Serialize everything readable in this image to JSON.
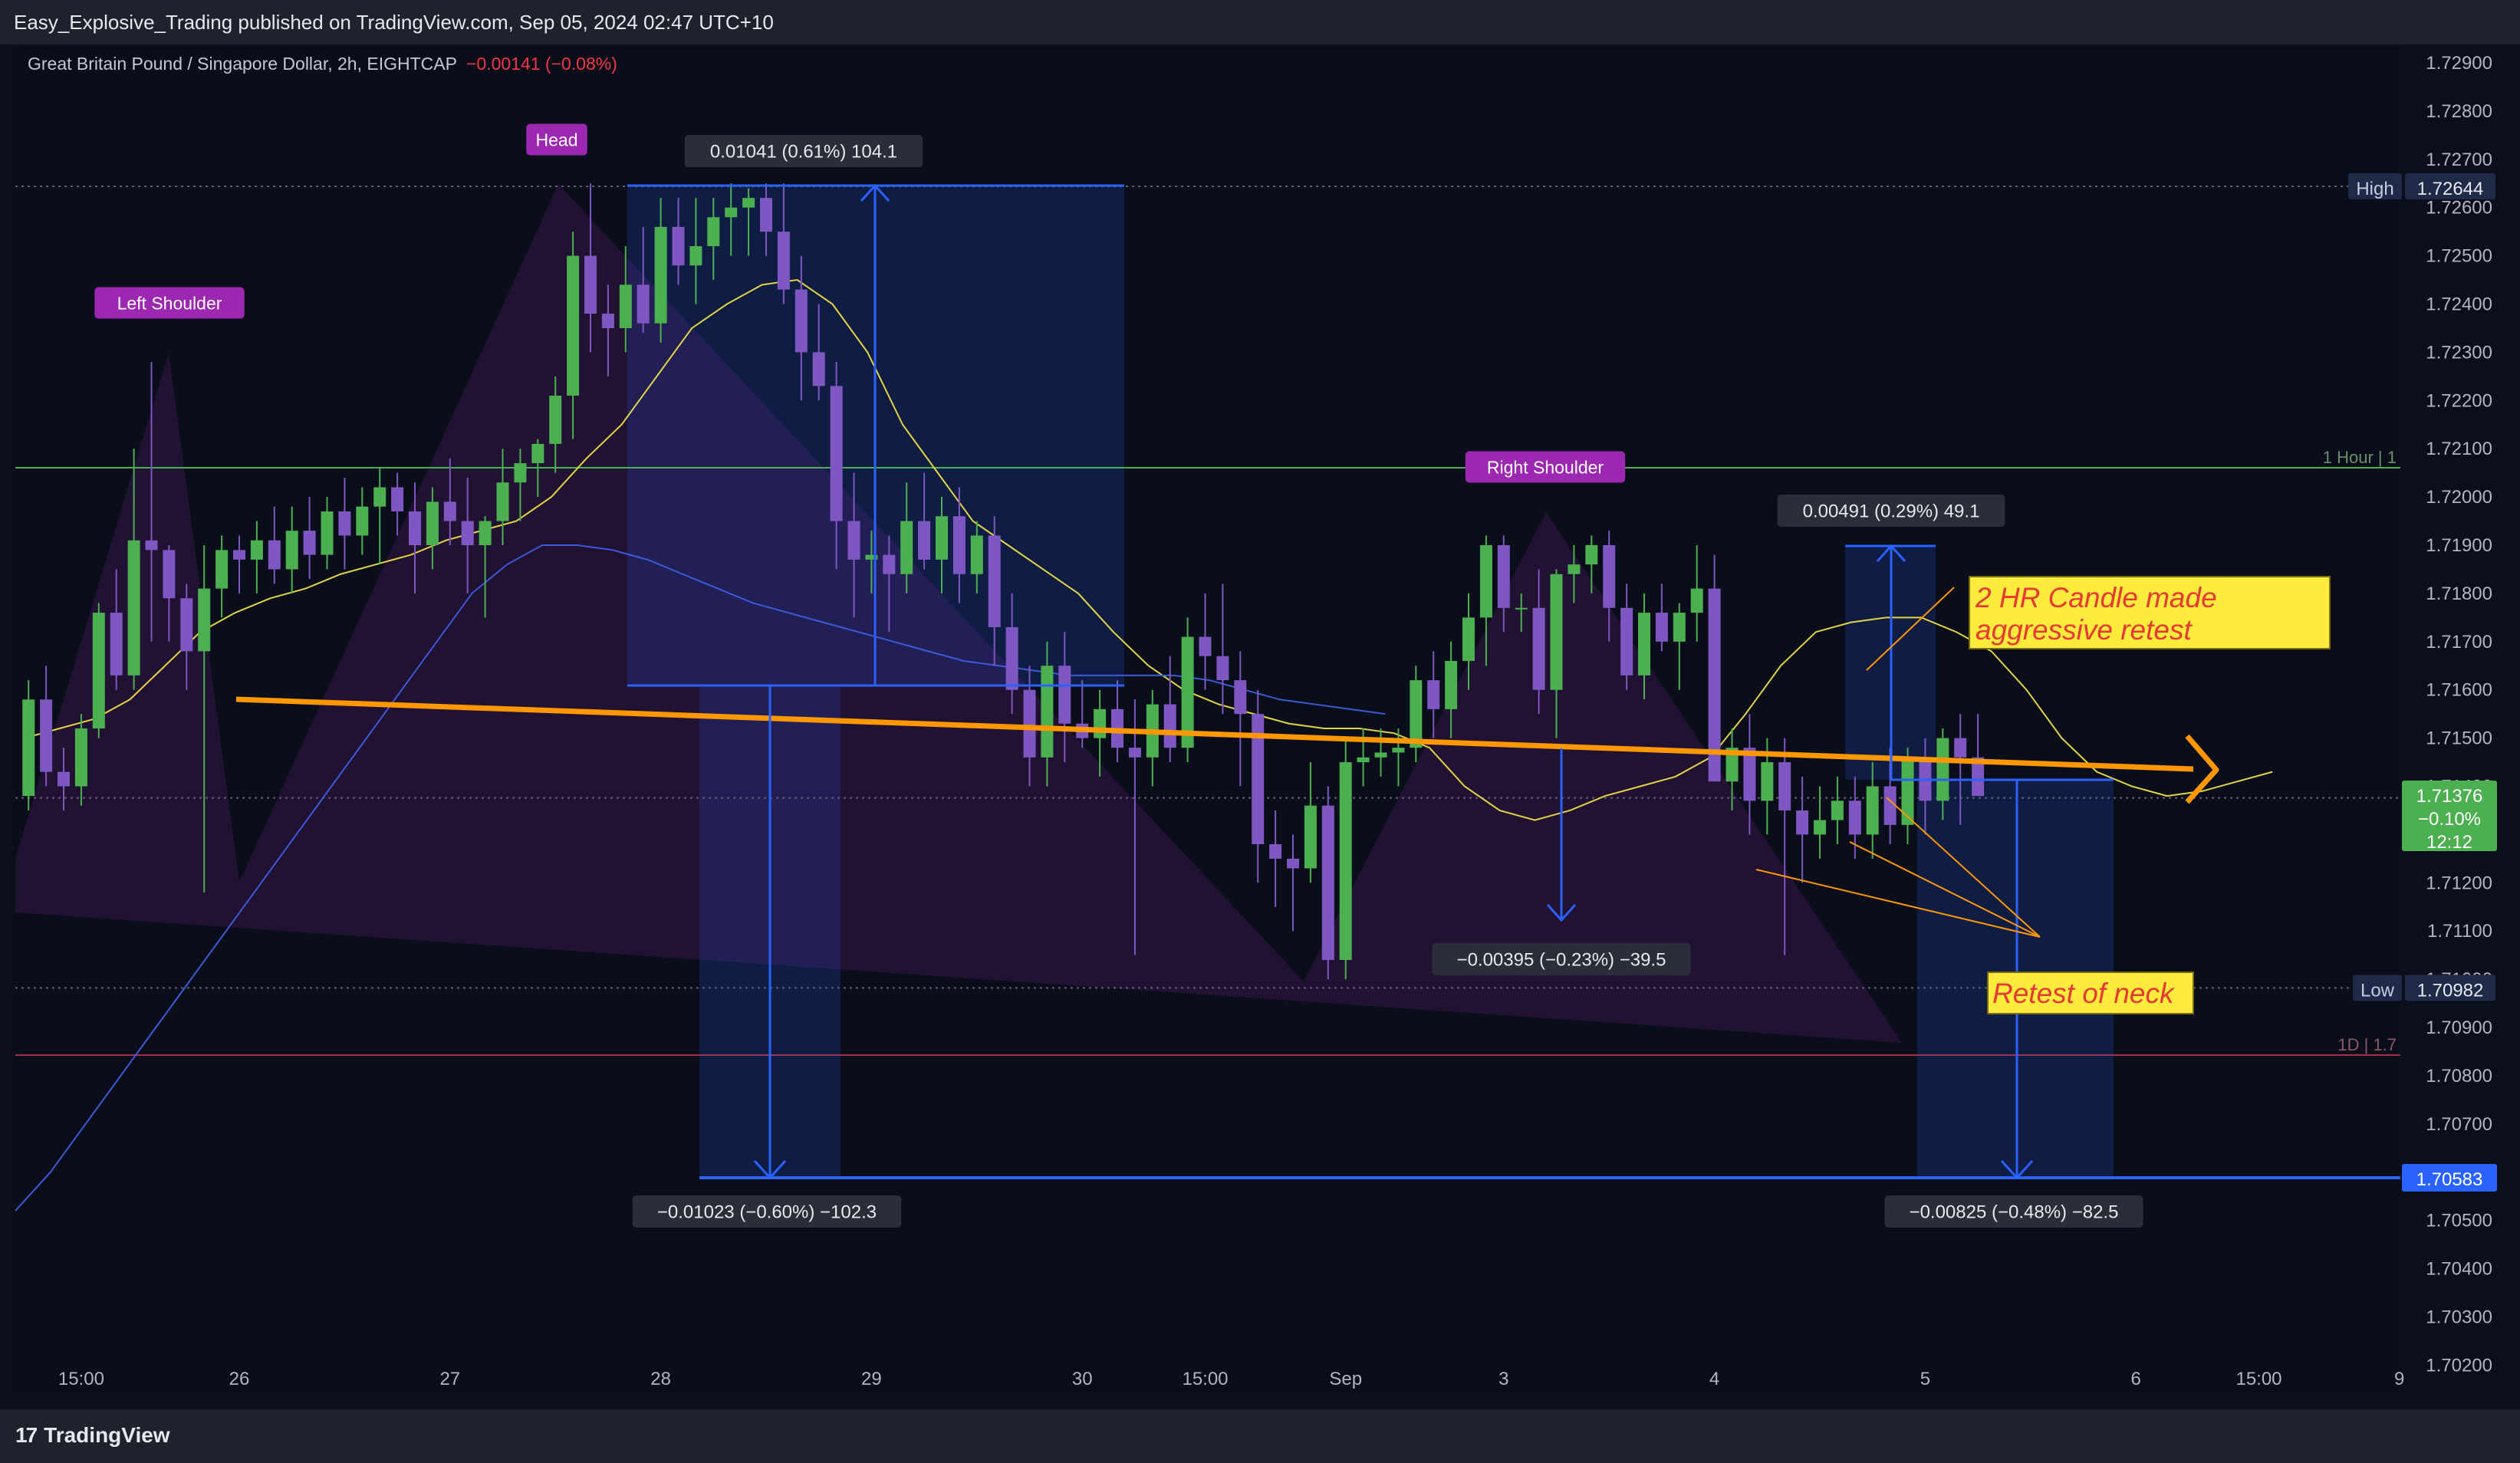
{
  "header": {
    "publisher_line": "Easy_Explosive_Trading published on TradingView.com, Sep 05, 2024 02:47 UTC+10"
  },
  "symbol": {
    "name": "Great Britain Pound / Singapore Dollar, 2h, EIGHTCAP",
    "change": "−0.00141 (−0.08%)"
  },
  "footer": {
    "brand": "TradingView"
  },
  "colors": {
    "bull": "#4caf50",
    "bear": "#7e57c2",
    "neckline": "#ff9800",
    "measure": "#2962ff",
    "ema_fast": "#e3d444",
    "ema_slow": "#3d5ad6"
  },
  "chart_data": {
    "type": "candlestick",
    "title": "",
    "xlabel": "",
    "ylabel": "",
    "ylim": [
      1.7015,
      1.7295
    ],
    "y_ticks": [
      "1.72900",
      "1.72800",
      "1.72700",
      "1.72600",
      "1.72500",
      "1.72400",
      "1.72300",
      "1.72200",
      "1.72100",
      "1.72000",
      "1.71900",
      "1.71800",
      "1.71700",
      "1.71600",
      "1.71500",
      "1.71400",
      "1.71300",
      "1.71200",
      "1.71100",
      "1.71000",
      "1.70900",
      "1.70800",
      "1.70700",
      "1.70600",
      "1.70500",
      "1.70400",
      "1.70300",
      "1.70200"
    ],
    "x_ticks": [
      {
        "label": "15:00",
        "i": -9
      },
      {
        "label": "26",
        "i": 0
      },
      {
        "label": "27",
        "i": 12
      },
      {
        "label": "28",
        "i": 24
      },
      {
        "label": "29",
        "i": 36
      },
      {
        "label": "30",
        "i": 48
      },
      {
        "label": "15:00",
        "i": 55
      },
      {
        "label": "Sep",
        "i": 63
      },
      {
        "label": "3",
        "i": 72
      },
      {
        "label": "4",
        "i": 84
      },
      {
        "label": "5",
        "i": 96
      },
      {
        "label": "6",
        "i": 108
      },
      {
        "label": "15:00",
        "i": 115
      },
      {
        "label": "9",
        "i": 123
      }
    ],
    "candles_ohlc": [
      [
        1.7138,
        1.7162,
        1.7135,
        1.7158
      ],
      [
        1.7158,
        1.7165,
        1.714,
        1.7143
      ],
      [
        1.7143,
        1.7148,
        1.7135,
        1.714
      ],
      [
        1.714,
        1.7155,
        1.7136,
        1.7152
      ],
      [
        1.7152,
        1.7178,
        1.715,
        1.7176
      ],
      [
        1.7176,
        1.7185,
        1.716,
        1.7163
      ],
      [
        1.7163,
        1.721,
        1.716,
        1.7191
      ],
      [
        1.7191,
        1.7228,
        1.717,
        1.7189
      ],
      [
        1.7189,
        1.719,
        1.717,
        1.7179
      ],
      [
        1.7179,
        1.7182,
        1.716,
        1.7168
      ],
      [
        1.7168,
        1.719,
        1.7118,
        1.7181
      ],
      [
        1.7181,
        1.7192,
        1.7175,
        1.7189
      ],
      [
        1.7189,
        1.7192,
        1.718,
        1.7187
      ],
      [
        1.7187,
        1.7195,
        1.718,
        1.7191
      ],
      [
        1.7191,
        1.7198,
        1.7182,
        1.7185
      ],
      [
        1.7185,
        1.7198,
        1.718,
        1.7193
      ],
      [
        1.7193,
        1.72,
        1.7183,
        1.7188
      ],
      [
        1.7188,
        1.72,
        1.7185,
        1.7197
      ],
      [
        1.7197,
        1.7204,
        1.7185,
        1.7192
      ],
      [
        1.7192,
        1.7202,
        1.7188,
        1.7198
      ],
      [
        1.7198,
        1.7206,
        1.7186,
        1.7202
      ],
      [
        1.7202,
        1.7205,
        1.7192,
        1.7197
      ],
      [
        1.7197,
        1.7203,
        1.718,
        1.719
      ],
      [
        1.719,
        1.7202,
        1.7185,
        1.7199
      ],
      [
        1.7199,
        1.7208,
        1.719,
        1.7195
      ],
      [
        1.7195,
        1.7204,
        1.718,
        1.719
      ],
      [
        1.719,
        1.7196,
        1.7175,
        1.7195
      ],
      [
        1.7195,
        1.721,
        1.719,
        1.7203
      ],
      [
        1.7203,
        1.721,
        1.7195,
        1.7207
      ],
      [
        1.7207,
        1.7212,
        1.72,
        1.7211
      ],
      [
        1.7211,
        1.7225,
        1.7205,
        1.7221
      ],
      [
        1.7221,
        1.7255,
        1.7212,
        1.725
      ],
      [
        1.725,
        1.7265,
        1.723,
        1.7238
      ],
      [
        1.7238,
        1.7244,
        1.7225,
        1.7235
      ],
      [
        1.7235,
        1.7252,
        1.723,
        1.7244
      ],
      [
        1.7244,
        1.7256,
        1.7234,
        1.7236
      ],
      [
        1.7236,
        1.7262,
        1.7232,
        1.7256
      ],
      [
        1.7256,
        1.7262,
        1.7244,
        1.7248
      ],
      [
        1.7248,
        1.7262,
        1.724,
        1.7252
      ],
      [
        1.7252,
        1.7262,
        1.7245,
        1.7258
      ],
      [
        1.7258,
        1.7265,
        1.725,
        1.726
      ],
      [
        1.726,
        1.7264,
        1.725,
        1.7262
      ],
      [
        1.7262,
        1.7265,
        1.725,
        1.7255
      ],
      [
        1.7255,
        1.7265,
        1.724,
        1.7243
      ],
      [
        1.7243,
        1.725,
        1.722,
        1.723
      ],
      [
        1.723,
        1.724,
        1.722,
        1.7223
      ],
      [
        1.7223,
        1.7228,
        1.7185,
        1.7195
      ],
      [
        1.7195,
        1.7205,
        1.7175,
        1.7187
      ],
      [
        1.7187,
        1.7193,
        1.718,
        1.7188
      ],
      [
        1.7188,
        1.7192,
        1.7172,
        1.7184
      ],
      [
        1.7184,
        1.7203,
        1.718,
        1.7195
      ],
      [
        1.7195,
        1.7205,
        1.7185,
        1.7187
      ],
      [
        1.7187,
        1.72,
        1.718,
        1.7196
      ],
      [
        1.7196,
        1.7202,
        1.7178,
        1.7184
      ],
      [
        1.7184,
        1.7195,
        1.718,
        1.7192
      ],
      [
        1.7192,
        1.7196,
        1.7165,
        1.7173
      ],
      [
        1.7173,
        1.718,
        1.7155,
        1.716
      ],
      [
        1.716,
        1.7165,
        1.714,
        1.7146
      ],
      [
        1.7146,
        1.717,
        1.714,
        1.7165
      ],
      [
        1.7165,
        1.7172,
        1.7145,
        1.7153
      ],
      [
        1.7153,
        1.7162,
        1.7148,
        1.715
      ],
      [
        1.715,
        1.716,
        1.7142,
        1.7156
      ],
      [
        1.7156,
        1.7162,
        1.7145,
        1.7148
      ],
      [
        1.7148,
        1.7158,
        1.7105,
        1.7146
      ],
      [
        1.7146,
        1.716,
        1.714,
        1.7157
      ],
      [
        1.7157,
        1.7167,
        1.7145,
        1.7148
      ],
      [
        1.7148,
        1.7175,
        1.7145,
        1.7171
      ],
      [
        1.7171,
        1.718,
        1.716,
        1.7167
      ],
      [
        1.7167,
        1.7182,
        1.7155,
        1.7162
      ],
      [
        1.7162,
        1.7168,
        1.714,
        1.7155
      ],
      [
        1.7155,
        1.716,
        1.712,
        1.7128
      ],
      [
        1.7128,
        1.7135,
        1.7115,
        1.7125
      ],
      [
        1.7125,
        1.713,
        1.711,
        1.7123
      ],
      [
        1.7123,
        1.7145,
        1.712,
        1.7136
      ],
      [
        1.7136,
        1.714,
        1.71,
        1.7104
      ],
      [
        1.7104,
        1.715,
        1.71,
        1.7145
      ],
      [
        1.7145,
        1.7152,
        1.714,
        1.7146
      ],
      [
        1.7146,
        1.7152,
        1.7142,
        1.7147
      ],
      [
        1.7147,
        1.7152,
        1.714,
        1.7148
      ],
      [
        1.7148,
        1.7165,
        1.7145,
        1.7162
      ],
      [
        1.7162,
        1.7168,
        1.715,
        1.7156
      ],
      [
        1.7156,
        1.717,
        1.715,
        1.7166
      ],
      [
        1.7166,
        1.718,
        1.716,
        1.7175
      ],
      [
        1.7175,
        1.7192,
        1.7165,
        1.719
      ],
      [
        1.719,
        1.7192,
        1.7172,
        1.7177
      ],
      [
        1.7177,
        1.718,
        1.7172,
        1.7177
      ],
      [
        1.7177,
        1.7185,
        1.7155,
        1.716
      ],
      [
        1.716,
        1.7185,
        1.715,
        1.7184
      ]
    ],
    "candles_ohlc_2": [
      [
        1.7184,
        1.719,
        1.7178,
        1.7186
      ],
      [
        1.7186,
        1.7192,
        1.718,
        1.719
      ],
      [
        1.719,
        1.7193,
        1.717,
        1.7177
      ],
      [
        1.7177,
        1.7182,
        1.716,
        1.7163
      ],
      [
        1.7163,
        1.718,
        1.7158,
        1.7176
      ],
      [
        1.7176,
        1.7182,
        1.7168,
        1.717
      ],
      [
        1.717,
        1.7178,
        1.716,
        1.7176
      ],
      [
        1.7176,
        1.719,
        1.717,
        1.7181
      ],
      [
        1.7181,
        1.7188,
        1.7145,
        1.7141
      ],
      [
        1.7141,
        1.7152,
        1.7135,
        1.7148
      ],
      [
        1.7148,
        1.7155,
        1.713,
        1.7137
      ],
      [
        1.7137,
        1.715,
        1.713,
        1.7145
      ],
      [
        1.7145,
        1.715,
        1.7105,
        1.7135
      ],
      [
        1.7135,
        1.7142,
        1.712,
        1.713
      ],
      [
        1.713,
        1.714,
        1.7125,
        1.7133
      ],
      [
        1.7133,
        1.7142,
        1.7128,
        1.7137
      ],
      [
        1.7137,
        1.7142,
        1.7125,
        1.713
      ],
      [
        1.713,
        1.7145,
        1.7125,
        1.714
      ],
      [
        1.714,
        1.7148,
        1.7128,
        1.7132
      ],
      [
        1.7132,
        1.7148,
        1.7128,
        1.7146
      ],
      [
        1.7146,
        1.715,
        1.713,
        1.7137
      ],
      [
        1.7137,
        1.7152,
        1.7133,
        1.715
      ],
      [
        1.715,
        1.7155,
        1.7132,
        1.7146
      ],
      [
        1.7146,
        1.7155,
        1.7138,
        1.7138
      ]
    ],
    "ema_fast": [
      1.715,
      1.7152,
      1.7154,
      1.7158,
      1.7165,
      1.7172,
      1.7176,
      1.7179,
      1.7181,
      1.7184,
      1.7186,
      1.7188,
      1.7191,
      1.7193,
      1.7195,
      1.72,
      1.7208,
      1.7215,
      1.7225,
      1.7235,
      1.724,
      1.7244,
      1.7245,
      1.724,
      1.723,
      1.7215,
      1.7205,
      1.7195,
      1.719,
      1.7185,
      1.718,
      1.7172,
      1.7165,
      1.716,
      1.7157,
      1.7155,
      1.7153,
      1.7152,
      1.7152,
      1.7151,
      1.7148,
      1.714,
      1.7135,
      1.7133,
      1.7135,
      1.7138,
      1.714,
      1.7142,
      1.7146,
      1.7155,
      1.7165,
      1.7172,
      1.7174,
      1.7175,
      1.7175,
      1.7172,
      1.7168,
      1.716,
      1.715,
      1.7143,
      1.714,
      1.7138,
      1.7139,
      1.7141,
      1.7143
    ],
    "ema_slow": [
      1.7052,
      1.706,
      1.707,
      1.708,
      1.709,
      1.71,
      1.711,
      1.712,
      1.713,
      1.714,
      1.715,
      1.716,
      1.717,
      1.718,
      1.7186,
      1.719,
      1.719,
      1.7189,
      1.7187,
      1.7184,
      1.7181,
      1.7178,
      1.7176,
      1.7174,
      1.7172,
      1.717,
      1.7168,
      1.7166,
      1.7165,
      1.7164,
      1.7163,
      1.7163,
      1.7163,
      1.7163,
      1.7162,
      1.716,
      1.7158,
      1.7157,
      1.7156,
      1.7155
    ],
    "price_labels": {
      "high": {
        "label": "High",
        "value": "1.72644"
      },
      "low": {
        "label": "Low",
        "value": "1.70982"
      },
      "target": {
        "value": "1.70583"
      },
      "current": {
        "value": "1.71376",
        "change": "−0.10%",
        "countdown": "12:12"
      }
    },
    "level_labels": {
      "hour": "1 Hour | 1",
      "day": "1D | 1.7"
    },
    "pattern_labels": {
      "left_shoulder": "Left Shoulder",
      "head": "Head",
      "right_shoulder": "Right Shoulder"
    },
    "measurements": {
      "m1": "0.01041 (0.61%) 104.1",
      "m2": "−0.01023 (−0.60%) −102.3",
      "m3": "0.00491 (0.29%) 49.1",
      "m4": "−0.00395 (−0.23%) −39.5",
      "m5": "−0.00825 (−0.48%) −82.5"
    },
    "notes": {
      "note1_line1": "2 HR Candle made",
      "note1_line2": "aggressive retest",
      "note2": "Retest of neck"
    }
  }
}
